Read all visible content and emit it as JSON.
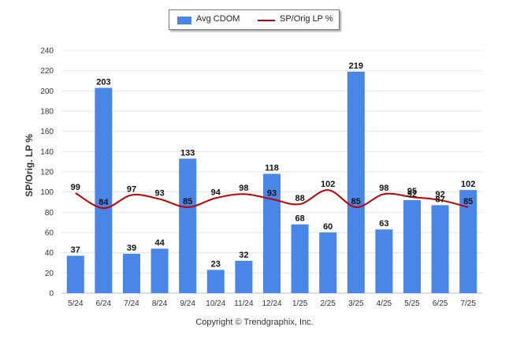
{
  "legend": {
    "bar_label": "Avg CDOM",
    "line_label": "SP/Orig LP %"
  },
  "copyright": "Copyright © Trendgraphix, Inc.",
  "colors": {
    "bar": "#4a86e8",
    "line": "#c00000",
    "grid": "#e6e6e6"
  },
  "chart_data": {
    "type": "bar",
    "categories": [
      "5/24",
      "6/24",
      "7/24",
      "8/24",
      "9/24",
      "10/24",
      "11/24",
      "12/24",
      "1/25",
      "2/25",
      "3/25",
      "4/25",
      "5/25",
      "6/25",
      "7/25"
    ],
    "ylabel": "SP/Orig. LP %",
    "ylim": [
      0,
      240
    ],
    "yticks": [
      0,
      20,
      40,
      60,
      80,
      100,
      120,
      140,
      160,
      180,
      200,
      220,
      240
    ],
    "grid": true,
    "legend_position": "top-center",
    "series": [
      {
        "name": "Avg CDOM",
        "type": "bar",
        "values": [
          37,
          203,
          39,
          44,
          133,
          23,
          32,
          118,
          68,
          60,
          219,
          63,
          92,
          87,
          102
        ]
      },
      {
        "name": "SP/Orig LP %",
        "type": "line",
        "values": [
          99,
          84,
          97,
          93,
          85,
          94,
          98,
          93,
          88,
          102,
          85,
          98,
          95,
          92,
          85
        ]
      }
    ]
  }
}
